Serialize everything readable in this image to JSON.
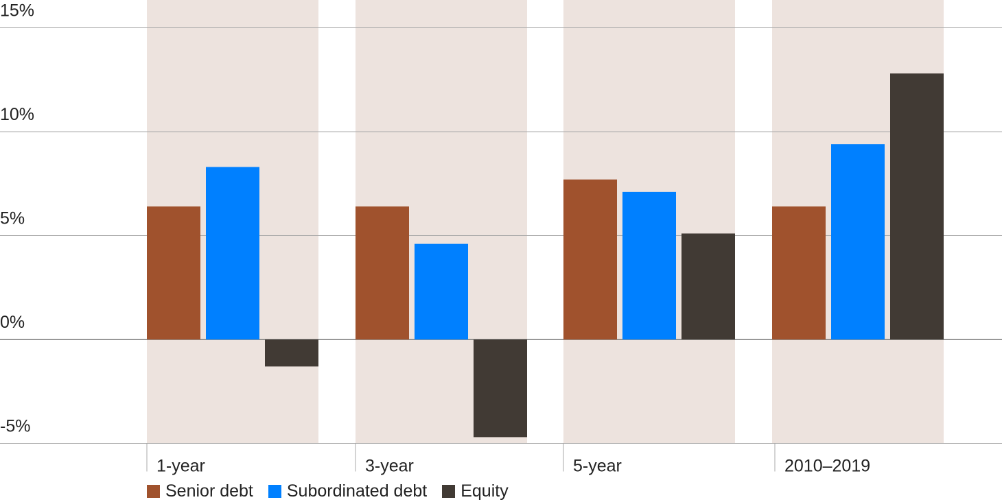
{
  "chart_data": {
    "type": "bar",
    "categories": [
      "1-year",
      "3-year",
      "5-year",
      "2010–2019"
    ],
    "series": [
      {
        "name": "Senior debt",
        "color": "#a0522d",
        "values": [
          6.4,
          6.4,
          7.7,
          6.4
        ]
      },
      {
        "name": "Subordinated debt",
        "color": "#0080ff",
        "values": [
          8.3,
          4.6,
          7.1,
          9.4
        ]
      },
      {
        "name": "Equity",
        "color": "#413a34",
        "values": [
          -1.3,
          -4.7,
          5.1,
          12.8
        ]
      }
    ],
    "y_ticks": [
      "15%",
      "10%",
      "5%",
      "0%",
      "-5%"
    ],
    "y_tick_values": [
      15,
      10,
      5,
      0,
      -5
    ],
    "ylim": [
      -5,
      16.4
    ],
    "title": "",
    "xlabel": "",
    "ylabel": "",
    "grid": true,
    "legend_position": "bottom-left",
    "band_color": "#ede3de",
    "grid_color": "#a9a9a9",
    "zero_line_color": "#777777"
  }
}
